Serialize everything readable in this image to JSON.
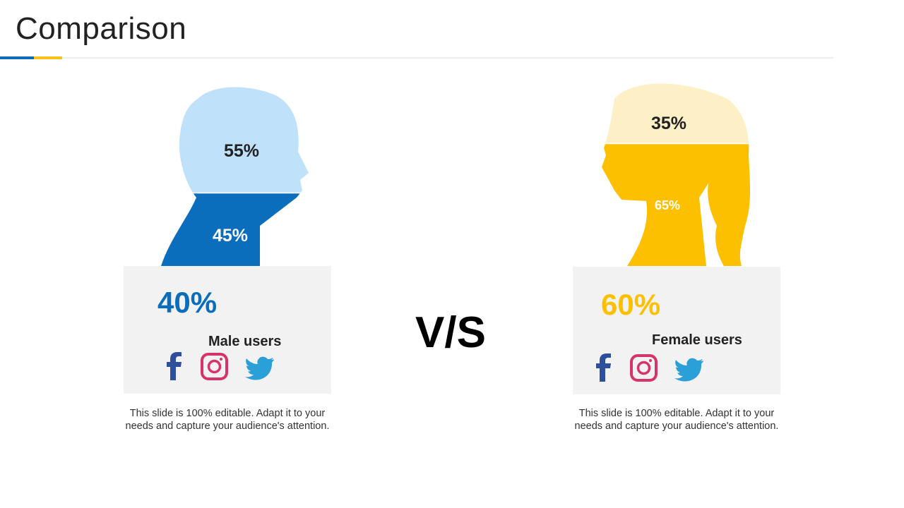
{
  "title": "Comparison",
  "vs": "V/S",
  "panels": [
    {
      "top_share": "55%",
      "bottom_share": "45%",
      "share": "40%",
      "label": "Male users",
      "note": "This slide is 100% editable. Adapt it to your needs and capture your audience's attention."
    },
    {
      "top_share": "35%",
      "bottom_share": "65%",
      "share": "60%",
      "label": "Female users",
      "note": "This slide is 100% editable. Adapt it to your needs and capture your audience's attention."
    }
  ]
}
